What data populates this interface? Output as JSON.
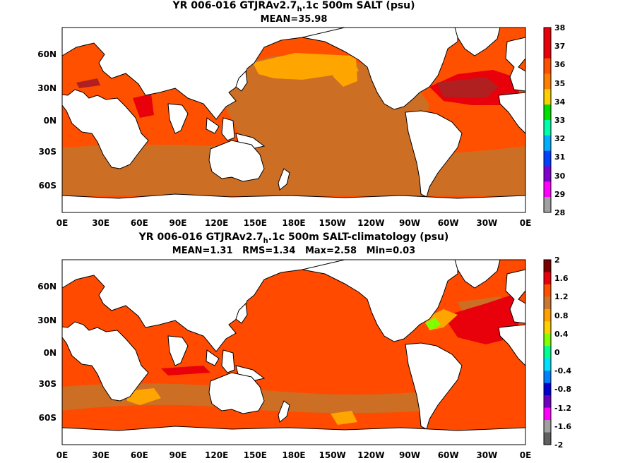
{
  "panels": [
    {
      "title_prefix": "YR 006-016 GTJRAv2.7",
      "title_sub": "h",
      "title_suffix": ".1c 500m SALT (psu)",
      "stats": "MEAN=35.98",
      "colorbar": {
        "labels": [
          "38",
          "37",
          "36",
          "35",
          "34",
          "33",
          "32",
          "31",
          "30",
          "29",
          "28"
        ],
        "colors": [
          "#e8000b",
          "#e8000b",
          "#ff5000",
          "#ff7f00",
          "#ffd000",
          "#00e000",
          "#00ffaa",
          "#00b0ff",
          "#0040ff",
          "#8000d0",
          "#ff00ff",
          "#a0a0a0"
        ]
      }
    },
    {
      "title_prefix": "YR 006-016 GTJRAv2.7",
      "title_sub": "h",
      "title_suffix": ".1c 500m SALT-climatology (psu)",
      "stats": "MEAN=1.31   RMS=1.34   Max=2.58   Min=0.03",
      "colorbar": {
        "labels": [
          "2",
          "1.6",
          "1.2",
          "0.8",
          "0.4",
          "0",
          "-0.4",
          "-0.8",
          "-1.2",
          "-1.6",
          "-2"
        ],
        "colors": [
          "#7a0000",
          "#e8000b",
          "#ff5000",
          "#c87832",
          "#ffa000",
          "#ffd000",
          "#80ff00",
          "#00ff90",
          "#00e0ff",
          "#0080ff",
          "#0000d0",
          "#7000c0",
          "#ff00ff",
          "#a0a0a0",
          "#606060"
        ]
      }
    }
  ],
  "map": {
    "lat_labels": [
      "60N",
      "30N",
      "0N",
      "30S",
      "60S"
    ],
    "lon_labels": [
      "0E",
      "30E",
      "60E",
      "90E",
      "120E",
      "150E",
      "180E",
      "150W",
      "120W",
      "90W",
      "60W",
      "30W",
      "0E"
    ],
    "colors": {
      "ocean_top": "#ff5000",
      "tan": "#cd6e25",
      "amber": "#ffa500",
      "highred": "#e8000b",
      "darkred": "#b02020",
      "ocean_bottom": "#ff4a00",
      "land": "#ffffff"
    }
  }
}
